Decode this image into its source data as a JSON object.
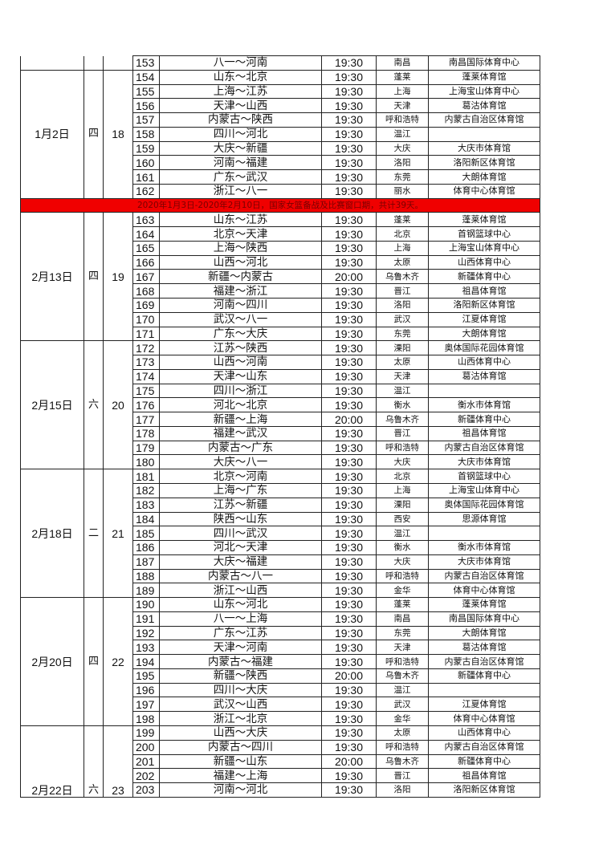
{
  "banner": "2020年1月3日-2020年2月10日，国家女篮备战及比赛窗口期，共计39天。",
  "colors": {
    "banner_bg": "#f00000",
    "banner_text": "#7a0000",
    "grid": "#222222"
  },
  "groups": [
    {
      "date": "",
      "weekday": "",
      "round": "",
      "games": [
        {
          "no": "153",
          "match": "八一～河南",
          "time": "19:30",
          "city": "南昌",
          "venue": "南昌国际体育中心"
        }
      ]
    },
    {
      "date": "1月2日",
      "weekday": "四",
      "round": "18",
      "games": [
        {
          "no": "154",
          "match": "山东～北京",
          "time": "19:30",
          "city": "蓬莱",
          "venue": "蓬莱体育馆"
        },
        {
          "no": "155",
          "match": "上海～江苏",
          "time": "19:30",
          "city": "上海",
          "venue": "上海宝山体育中心"
        },
        {
          "no": "156",
          "match": "天津～山西",
          "time": "19:30",
          "city": "天津",
          "venue": "葛沽体育馆"
        },
        {
          "no": "157",
          "match": "内蒙古～陕西",
          "time": "19:30",
          "city": "呼和浩特",
          "venue": "内蒙古自治区体育馆"
        },
        {
          "no": "158",
          "match": "四川～河北",
          "time": "19:30",
          "city": "温江",
          "venue": ""
        },
        {
          "no": "159",
          "match": "大庆～新疆",
          "time": "19:30",
          "city": "大庆",
          "venue": "大庆市体育馆"
        },
        {
          "no": "160",
          "match": "河南～福建",
          "time": "19:30",
          "city": "洛阳",
          "venue": "洛阳新区体育馆"
        },
        {
          "no": "161",
          "match": "广东～武汉",
          "time": "19:30",
          "city": "东莞",
          "venue": "大朗体育馆"
        },
        {
          "no": "162",
          "match": "浙江～八一",
          "time": "19:30",
          "city": "丽水",
          "venue": "体育中心体育馆"
        }
      ]
    },
    {
      "date": "2月13日",
      "weekday": "四",
      "round": "19",
      "games": [
        {
          "no": "163",
          "match": "山东～江苏",
          "time": "19:30",
          "city": "蓬莱",
          "venue": "蓬莱体育馆"
        },
        {
          "no": "164",
          "match": "北京～天津",
          "time": "19:30",
          "city": "北京",
          "venue": "首钢篮球中心"
        },
        {
          "no": "165",
          "match": "上海～陕西",
          "time": "19:30",
          "city": "上海",
          "venue": "上海宝山体育中心"
        },
        {
          "no": "166",
          "match": "山西～河北",
          "time": "19:30",
          "city": "太原",
          "venue": "山西体育中心"
        },
        {
          "no": "167",
          "match": "新疆～内蒙古",
          "time": "20:00",
          "city": "乌鲁木齐",
          "venue": "新疆体育中心"
        },
        {
          "no": "168",
          "match": "福建～浙江",
          "time": "19:30",
          "city": "晋江",
          "venue": "祖昌体育馆"
        },
        {
          "no": "169",
          "match": "河南～四川",
          "time": "19:30",
          "city": "洛阳",
          "venue": "洛阳新区体育馆"
        },
        {
          "no": "170",
          "match": "武汉～八一",
          "time": "19:30",
          "city": "武汉",
          "venue": "江夏体育馆"
        },
        {
          "no": "171",
          "match": "广东～大庆",
          "time": "19:30",
          "city": "东莞",
          "venue": "大朗体育馆"
        }
      ]
    },
    {
      "date": "2月15日",
      "weekday": "六",
      "round": "20",
      "games": [
        {
          "no": "172",
          "match": "江苏～陕西",
          "time": "19:30",
          "city": "溧阳",
          "venue": "奥体国际花园体育馆"
        },
        {
          "no": "173",
          "match": "山西～河南",
          "time": "19:30",
          "city": "太原",
          "venue": "山西体育中心"
        },
        {
          "no": "174",
          "match": "天津～山东",
          "time": "19:30",
          "city": "天津",
          "venue": "葛沽体育馆"
        },
        {
          "no": "175",
          "match": "四川～浙江",
          "time": "19:30",
          "city": "温江",
          "venue": ""
        },
        {
          "no": "176",
          "match": "河北～北京",
          "time": "19:30",
          "city": "衡水",
          "venue": "衡水市体育馆"
        },
        {
          "no": "177",
          "match": "新疆～上海",
          "time": "20:00",
          "city": "乌鲁木齐",
          "venue": "新疆体育中心"
        },
        {
          "no": "178",
          "match": "福建～武汉",
          "time": "19:30",
          "city": "晋江",
          "venue": "祖昌体育馆"
        },
        {
          "no": "179",
          "match": "内蒙古～广东",
          "time": "19:30",
          "city": "呼和浩特",
          "venue": "内蒙古自治区体育馆"
        },
        {
          "no": "180",
          "match": "大庆～八一",
          "time": "19:30",
          "city": "大庆",
          "venue": "大庆市体育馆"
        }
      ]
    },
    {
      "date": "2月18日",
      "weekday": "二",
      "round": "21",
      "games": [
        {
          "no": "181",
          "match": "北京～河南",
          "time": "19:30",
          "city": "北京",
          "venue": "首钢篮球中心"
        },
        {
          "no": "182",
          "match": "上海～广东",
          "time": "19:30",
          "city": "上海",
          "venue": "上海宝山体育中心"
        },
        {
          "no": "183",
          "match": "江苏～新疆",
          "time": "19:30",
          "city": "溧阳",
          "venue": "奥体国际花园体育馆"
        },
        {
          "no": "184",
          "match": "陕西～山东",
          "time": "19:30",
          "city": "西安",
          "venue": "思源体育馆"
        },
        {
          "no": "185",
          "match": "四川～武汉",
          "time": "19:30",
          "city": "温江",
          "venue": ""
        },
        {
          "no": "186",
          "match": "河北～天津",
          "time": "19:30",
          "city": "衡水",
          "venue": "衡水市体育馆"
        },
        {
          "no": "187",
          "match": "大庆～福建",
          "time": "19:30",
          "city": "大庆",
          "venue": "大庆市体育馆"
        },
        {
          "no": "188",
          "match": "内蒙古～八一",
          "time": "19:30",
          "city": "呼和浩特",
          "venue": "内蒙古自治区体育馆"
        },
        {
          "no": "189",
          "match": "浙江～山西",
          "time": "19:30",
          "city": "金华",
          "venue": "体育中心体育馆"
        }
      ]
    },
    {
      "date": "2月20日",
      "weekday": "四",
      "round": "22",
      "games": [
        {
          "no": "190",
          "match": "山东～河北",
          "time": "19:30",
          "city": "蓬莱",
          "venue": "蓬莱体育馆"
        },
        {
          "no": "191",
          "match": "八一～上海",
          "time": "19:30",
          "city": "南昌",
          "venue": "南昌国际体育中心"
        },
        {
          "no": "192",
          "match": "广东～江苏",
          "time": "19:30",
          "city": "东莞",
          "venue": "大朗体育馆"
        },
        {
          "no": "193",
          "match": "天津～河南",
          "time": "19:30",
          "city": "天津",
          "venue": "葛沽体育馆"
        },
        {
          "no": "194",
          "match": "内蒙古～福建",
          "time": "19:30",
          "city": "呼和浩特",
          "venue": "内蒙古自治区体育馆"
        },
        {
          "no": "195",
          "match": "新疆～陕西",
          "time": "20:00",
          "city": "乌鲁木齐",
          "venue": "新疆体育中心"
        },
        {
          "no": "196",
          "match": "四川～大庆",
          "time": "19:30",
          "city": "温江",
          "venue": ""
        },
        {
          "no": "197",
          "match": "武汉～山西",
          "time": "19:30",
          "city": "武汉",
          "venue": "江夏体育馆"
        },
        {
          "no": "198",
          "match": "浙江～北京",
          "time": "19:30",
          "city": "金华",
          "venue": "体育中心体育馆"
        }
      ]
    },
    {
      "date": "2月22日",
      "weekday": "六",
      "round": "23",
      "games": [
        {
          "no": "199",
          "match": "山西～大庆",
          "time": "19:30",
          "city": "太原",
          "venue": "山西体育中心"
        },
        {
          "no": "200",
          "match": "内蒙古～四川",
          "time": "19:30",
          "city": "呼和浩特",
          "venue": "内蒙古自治区体育馆"
        },
        {
          "no": "201",
          "match": "新疆～山东",
          "time": "20:00",
          "city": "乌鲁木齐",
          "venue": "新疆体育中心"
        },
        {
          "no": "202",
          "match": "福建～上海",
          "time": "19:30",
          "city": "晋江",
          "venue": "祖昌体育馆"
        },
        {
          "no": "203",
          "match": "河南～河北",
          "time": "19:30",
          "city": "洛阳",
          "venue": "洛阳新区体育馆"
        }
      ]
    }
  ]
}
